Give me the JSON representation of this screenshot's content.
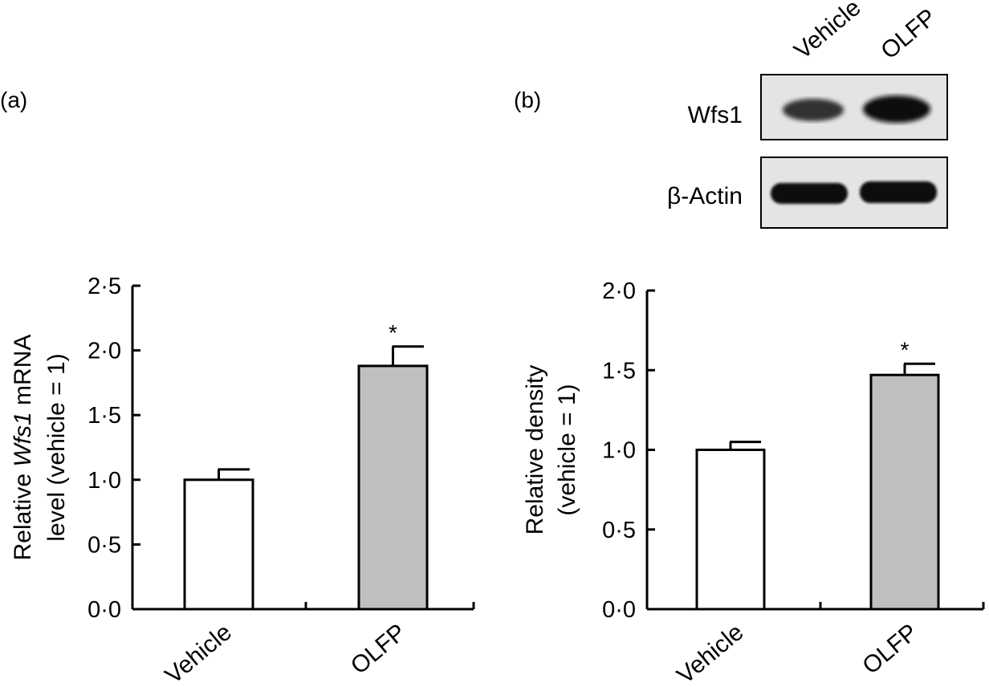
{
  "panel_a": {
    "label": "(a)"
  },
  "panel_b": {
    "label": "(b)"
  },
  "blot": {
    "lanes": [
      "Vehicle",
      "OLFP"
    ],
    "rows": [
      "Wfs1",
      "β-Actin"
    ]
  },
  "chart_data": [
    {
      "type": "bar",
      "panel": "(a)",
      "categories": [
        "Vehicle",
        "OLFP"
      ],
      "values": [
        1.0,
        1.88
      ],
      "errors": [
        0.08,
        0.15
      ],
      "significance": [
        "",
        "*"
      ],
      "colors": [
        "#ffffff",
        "#c0c0c0"
      ],
      "ylabel_parts": [
        "Relative ",
        "Wfs1",
        " mRNA"
      ],
      "ylabel_line2": "level (vehicle = 1)",
      "xlabel": "",
      "ylim": [
        0,
        2.5
      ],
      "yticks": [
        "0·0",
        "0·5",
        "1·0",
        "1·5",
        "2·0",
        "2·5"
      ],
      "grid": false
    },
    {
      "type": "bar",
      "panel": "(b)",
      "categories": [
        "Vehicle",
        "OLFP"
      ],
      "values": [
        1.0,
        1.47
      ],
      "errors": [
        0.05,
        0.07
      ],
      "significance": [
        "",
        "*"
      ],
      "colors": [
        "#ffffff",
        "#c0c0c0"
      ],
      "ylabel": "Relative density",
      "ylabel_line2": "(vehicle = 1)",
      "xlabel": "",
      "ylim": [
        0,
        2.0
      ],
      "yticks": [
        "0·0",
        "0·5",
        "1·0",
        "1·5",
        "2·0"
      ],
      "grid": false
    }
  ]
}
